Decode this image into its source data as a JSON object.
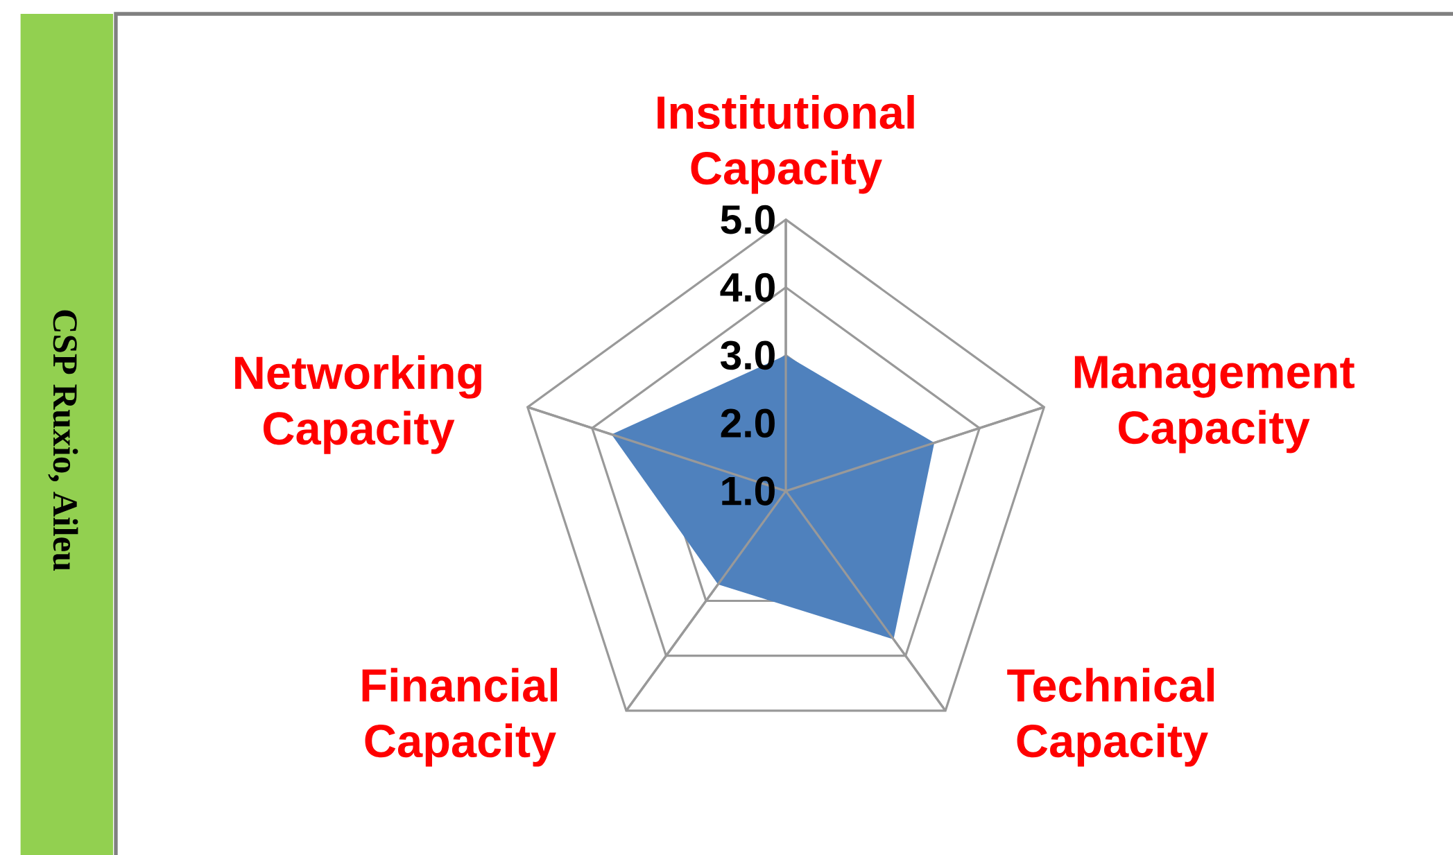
{
  "chart_data": {
    "type": "radar",
    "title": "CSP Ruxio, Aileu",
    "categories": [
      "Institutional Capacity",
      "Management Capacity",
      "Technical Capacity",
      "Financial Capacity",
      "Networking Capacity"
    ],
    "series": [
      {
        "color": "#4f81bd",
        "values": [
          3.0,
          3.3,
          3.7,
          2.7,
          3.7
        ]
      }
    ],
    "ylim": [
      1,
      5
    ],
    "yticks": [
      {
        "value": 1,
        "label": "1.0"
      },
      {
        "value": 2,
        "label": "2.0"
      },
      {
        "value": 3,
        "label": "3.0"
      },
      {
        "value": 4,
        "label": "4.0"
      },
      {
        "value": 5,
        "label": "5.0"
      }
    ],
    "grid": true
  }
}
